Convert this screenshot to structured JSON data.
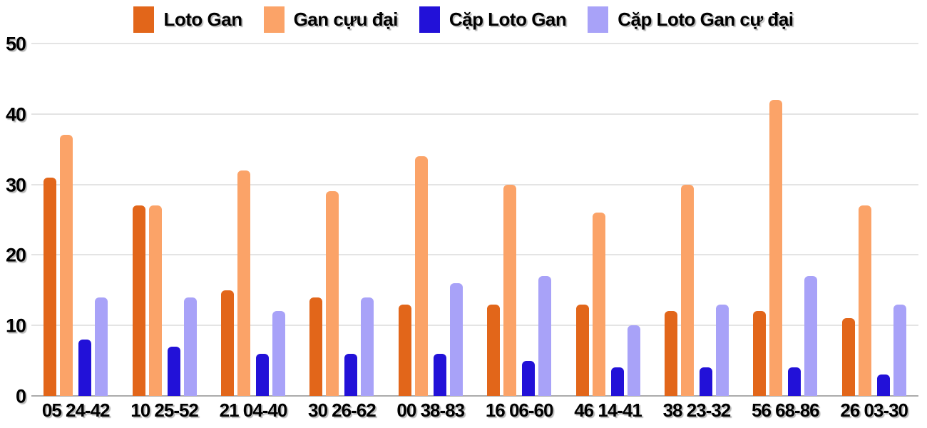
{
  "chart_data": {
    "type": "bar",
    "title": "",
    "xlabel": "",
    "ylabel": "",
    "ylim": [
      0,
      50
    ],
    "yticks": [
      0,
      10,
      20,
      30,
      40,
      50
    ],
    "grid": "horizontal",
    "legend_position": "top-center",
    "categories": [
      "05 24-42",
      "10 25-52",
      "21 04-40",
      "30 26-62",
      "00 38-83",
      "16 06-60",
      "46 14-41",
      "38 23-32",
      "56 68-86",
      "26 03-30"
    ],
    "series": [
      {
        "name": "Loto Gan",
        "color": "#e2661a",
        "values": [
          31,
          27,
          15,
          14,
          13,
          13,
          13,
          12,
          12,
          11
        ]
      },
      {
        "name": "Gan cựu đại",
        "color": "#fba368",
        "values": [
          37,
          27,
          32,
          29,
          34,
          30,
          26,
          30,
          42,
          27
        ]
      },
      {
        "name": "Cặp Loto Gan",
        "color": "#2211d8",
        "values": [
          8,
          7,
          6,
          6,
          6,
          5,
          4,
          4,
          4,
          3
        ]
      },
      {
        "name": "Cặp Loto Gan cự đại",
        "color": "#a8a2f8",
        "values": [
          14,
          14,
          12,
          14,
          16,
          17,
          10,
          13,
          17,
          13
        ]
      }
    ]
  },
  "colors": {
    "background": "#ffffff",
    "gridline": "#e4e4e4",
    "baseline": "#ababab",
    "text": "#000000"
  }
}
